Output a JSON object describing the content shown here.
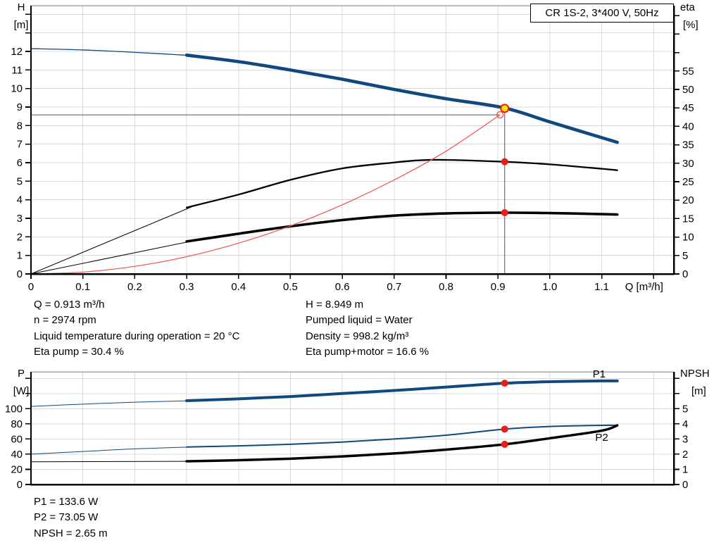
{
  "header": {
    "title": "CR 1S-2, 3*400 V, 50Hz"
  },
  "colors": {
    "curve_blue": "#10497e",
    "curve_black": "#000000",
    "curve_red": "#f05450",
    "dot_red": "#e81e17",
    "duty_yellow": "#ffe400",
    "label_blue": "#1b5a9e",
    "grid": "#d9d9d9",
    "frame_top": "#a6a6a6",
    "axis": "#000000",
    "ref_line": "#555555"
  },
  "annotations": {
    "left_column": [
      "Q = 0.913 m³/h",
      "n = 2974 rpm",
      "Liquid temperature during operation = 20 °C",
      "Eta pump = 30.4 %"
    ],
    "right_column": [
      "H = 8.949 m",
      "Pumped liquid = Water",
      "Density = 998.2 kg/m³",
      "Eta pump+motor = 16.6 %"
    ],
    "bottom_column": [
      "P1 = 133.6 W",
      "P2 = 73.05 W",
      "NPSH = 2.65 m"
    ]
  },
  "operating_point": {
    "Q": 0.913,
    "H": 8.949,
    "eta_pump": 30.4,
    "eta_pump_motor": 16.6,
    "P1": 133.6,
    "P2": 73.05,
    "NPSH": 2.65
  },
  "chart_data": [
    {
      "type": "line",
      "name": "head-efficiency-chart",
      "title": "CR 1S-2, 3*400 V, 50Hz",
      "x_axis": {
        "label": "Q [m³/h]",
        "lim": [
          0,
          1.239
        ],
        "ticks": [
          0,
          0.1,
          0.2,
          0.3,
          0.4,
          0.5,
          0.6,
          0.7,
          0.8,
          0.9,
          1.0,
          1.1,
          1.2
        ],
        "tick_labels": [
          "0",
          "0.1",
          "0.2",
          "0.3",
          "0.4",
          "0.5",
          "0.6",
          "0.7",
          "0.8",
          "0.9",
          "1.0",
          "1.1",
          ""
        ],
        "tick_marks": true
      },
      "left_axis": {
        "label": [
          "H",
          "[m]"
        ],
        "lim": [
          0,
          14.47
        ],
        "ticks": [
          0,
          1,
          2,
          3,
          4,
          5,
          6,
          7,
          8,
          9,
          10,
          11,
          12,
          13,
          14
        ],
        "tick_labels": [
          "0",
          "1",
          "2",
          "3",
          "4",
          "5",
          "6",
          "7",
          "8",
          "9",
          "10",
          "11",
          "12",
          "",
          ""
        ]
      },
      "right_axis": {
        "label": [
          "eta",
          "[%]"
        ],
        "label_indent": 4,
        "lim": [
          0,
          72.7
        ],
        "ticks": [
          0,
          5,
          10,
          15,
          20,
          25,
          30,
          35,
          40,
          45,
          50,
          55,
          60,
          65,
          70
        ],
        "tick_labels": [
          "0",
          "5",
          "10",
          "15",
          "20",
          "25",
          "30",
          "35",
          "40",
          "45",
          "50",
          "55",
          "",
          "",
          ""
        ]
      },
      "series": [
        {
          "name": "head-curve-inlet",
          "axis": "left",
          "color": "curve_blue",
          "width": 1.3,
          "points": [
            [
              0,
              12.15
            ],
            [
              0.1,
              12.08
            ],
            [
              0.2,
              11.95
            ],
            [
              0.31,
              11.78
            ]
          ]
        },
        {
          "name": "head-curve",
          "axis": "left",
          "color": "curve_blue",
          "width": 4.6,
          "points": [
            [
              0.3,
              11.8
            ],
            [
              0.4,
              11.45
            ],
            [
              0.5,
              11.0
            ],
            [
              0.6,
              10.5
            ],
            [
              0.7,
              9.95
            ],
            [
              0.8,
              9.45
            ],
            [
              0.913,
              8.949
            ],
            [
              1.0,
              8.2
            ],
            [
              1.1,
              7.35
            ],
            [
              1.13,
              7.1
            ]
          ]
        },
        {
          "name": "eta-pump-curve-inlet",
          "axis": "right",
          "color": "curve_black",
          "width": 1,
          "points": [
            [
              0,
              0
            ],
            [
              0.31,
              18.2
            ]
          ]
        },
        {
          "name": "eta-pump-curve",
          "axis": "right",
          "color": "curve_black",
          "width": 2.3,
          "points": [
            [
              0.3,
              18.0
            ],
            [
              0.4,
              21.5
            ],
            [
              0.5,
              25.5
            ],
            [
              0.6,
              28.6
            ],
            [
              0.7,
              30.2
            ],
            [
              0.75,
              30.8
            ],
            [
              0.8,
              30.9
            ],
            [
              0.913,
              30.4
            ],
            [
              1.0,
              29.7
            ],
            [
              1.1,
              28.5
            ],
            [
              1.13,
              28.1
            ]
          ]
        },
        {
          "name": "eta-pump-motor-curve-inlet",
          "axis": "right",
          "color": "curve_black",
          "width": 1,
          "points": [
            [
              0,
              0
            ],
            [
              0.31,
              8.9
            ]
          ]
        },
        {
          "name": "eta-pump-motor-curve",
          "axis": "right",
          "color": "curve_black",
          "width": 3.6,
          "points": [
            [
              0.3,
              8.8
            ],
            [
              0.4,
              10.9
            ],
            [
              0.5,
              12.9
            ],
            [
              0.6,
              14.6
            ],
            [
              0.7,
              15.8
            ],
            [
              0.8,
              16.4
            ],
            [
              0.913,
              16.6
            ],
            [
              1.0,
              16.5
            ],
            [
              1.1,
              16.2
            ],
            [
              1.13,
              16.1
            ]
          ]
        },
        {
          "name": "system-curve",
          "axis": "left",
          "color": "curve_red",
          "width": 1.2,
          "points": [
            [
              0,
              0
            ],
            [
              0.1,
              0.1
            ],
            [
              0.2,
              0.41
            ],
            [
              0.3,
              0.93
            ],
            [
              0.4,
              1.66
            ],
            [
              0.5,
              2.59
            ],
            [
              0.6,
              3.73
            ],
            [
              0.7,
              5.07
            ],
            [
              0.8,
              6.62
            ],
            [
              0.904,
              8.58
            ]
          ]
        }
      ],
      "ref_lines": [
        {
          "name": "duty-head-line",
          "type": "h",
          "axis": "left",
          "v": 8.58,
          "q0": 0,
          "q1": 0.904
        },
        {
          "name": "duty-flow-line",
          "type": "v",
          "axis": "left",
          "q": 0.913,
          "v0": 8.93,
          "v1": 0
        }
      ],
      "markers": [
        {
          "name": "system-intersection-marker",
          "q": 0.904,
          "axis": "left",
          "v": 8.58,
          "shape": "open-circle",
          "stroke": "curve_red",
          "r": 4.5
        },
        {
          "name": "duty-point-marker",
          "q": 0.913,
          "axis": "left",
          "v": 8.93,
          "shape": "dot",
          "fill": "duty_yellow",
          "stroke": "dot_red",
          "r": 5.5
        },
        {
          "name": "eta-pump-duty-dot",
          "q": 0.913,
          "axis": "right",
          "v": 30.4,
          "shape": "dot",
          "fill": "dot_red",
          "r": 5
        },
        {
          "name": "eta-pump-motor-duty-dot",
          "q": 0.913,
          "axis": "right",
          "v": 16.6,
          "shape": "dot",
          "fill": "dot_red",
          "r": 5
        }
      ],
      "labels": []
    },
    {
      "type": "line",
      "name": "power-npsh-chart",
      "title": "",
      "x_axis": {
        "label": "",
        "lim": [
          0,
          1.239
        ],
        "ticks": [
          0,
          0.1,
          0.2,
          0.3,
          0.4,
          0.5,
          0.6,
          0.7,
          0.8,
          0.9,
          1.0,
          1.1,
          1.2
        ],
        "tick_labels": [
          "",
          "",
          "",
          "",
          "",
          "",
          "",
          "",
          "",
          "",
          "",
          "",
          ""
        ],
        "tick_marks": false
      },
      "left_axis": {
        "label": [
          "P",
          "[W]"
        ],
        "lim": [
          0,
          148.6
        ],
        "ticks": [
          0,
          20,
          40,
          60,
          80,
          100,
          120,
          140
        ],
        "tick_labels": [
          "0",
          "20",
          "40",
          "60",
          "80",
          "100",
          "",
          ""
        ]
      },
      "right_axis": {
        "label": [
          "NPSH",
          "[m]"
        ],
        "label_indent": 16,
        "lim": [
          0,
          7.43
        ],
        "ticks": [
          0,
          1,
          2,
          3,
          4,
          5,
          6,
          7
        ],
        "tick_labels": [
          "0",
          "1",
          "2",
          "3",
          "4",
          "5",
          "",
          ""
        ]
      },
      "series": [
        {
          "name": "p1-curve-inlet",
          "axis": "left",
          "color": "curve_blue",
          "width": 1,
          "points": [
            [
              0,
              103
            ],
            [
              0.1,
              106
            ],
            [
              0.2,
              108.5
            ],
            [
              0.31,
              110.5
            ]
          ]
        },
        {
          "name": "p1-curve",
          "axis": "left",
          "color": "curve_blue",
          "width": 4,
          "points": [
            [
              0.3,
              110.5
            ],
            [
              0.4,
              113
            ],
            [
              0.5,
              116
            ],
            [
              0.6,
              120
            ],
            [
              0.7,
              124
            ],
            [
              0.8,
              128.5
            ],
            [
              0.913,
              133.6
            ],
            [
              1.0,
              135.6
            ],
            [
              1.1,
              136.6
            ],
            [
              1.13,
              136.6
            ]
          ]
        },
        {
          "name": "p2-curve-inlet",
          "axis": "left",
          "color": "curve_blue",
          "width": 1,
          "points": [
            [
              0,
              40
            ],
            [
              0.1,
              43.5
            ],
            [
              0.2,
              47
            ],
            [
              0.31,
              49.5
            ]
          ]
        },
        {
          "name": "p2-curve",
          "axis": "left",
          "color": "curve_blue",
          "width": 2,
          "points": [
            [
              0.3,
              49.5
            ],
            [
              0.4,
              51
            ],
            [
              0.5,
              53
            ],
            [
              0.6,
              56
            ],
            [
              0.7,
              60
            ],
            [
              0.8,
              65
            ],
            [
              0.913,
              73.05
            ],
            [
              1.0,
              76.5
            ],
            [
              1.1,
              78
            ],
            [
              1.13,
              78
            ]
          ]
        },
        {
          "name": "npsh-curve-inlet",
          "axis": "right",
          "color": "curve_black",
          "width": 1,
          "points": [
            [
              0,
              1.5
            ],
            [
              0.31,
              1.53
            ]
          ]
        },
        {
          "name": "npsh-curve",
          "axis": "right",
          "color": "curve_black",
          "width": 3.5,
          "points": [
            [
              0.3,
              1.53
            ],
            [
              0.4,
              1.6
            ],
            [
              0.5,
              1.7
            ],
            [
              0.6,
              1.85
            ],
            [
              0.7,
              2.05
            ],
            [
              0.8,
              2.3
            ],
            [
              0.913,
              2.65
            ],
            [
              1.0,
              3.05
            ],
            [
              1.1,
              3.55
            ],
            [
              1.13,
              3.9
            ]
          ]
        }
      ],
      "ref_lines": [],
      "markers": [
        {
          "name": "p1-duty-dot",
          "q": 0.913,
          "axis": "left",
          "v": 133.6,
          "shape": "dot",
          "fill": "dot_red",
          "r": 5
        },
        {
          "name": "p2-duty-dot",
          "q": 0.913,
          "axis": "left",
          "v": 73.05,
          "shape": "dot",
          "fill": "dot_red",
          "r": 5
        },
        {
          "name": "npsh-duty-dot",
          "q": 0.913,
          "axis": "right",
          "v": 2.65,
          "shape": "dot",
          "fill": "dot_red",
          "r": 5
        }
      ],
      "labels": [
        {
          "name": "p1-curve-label",
          "text": "P1",
          "q": 1.095,
          "axis": "left",
          "v": 145.8,
          "color": "label_blue"
        },
        {
          "name": "p2-curve-label",
          "text": "P2",
          "q": 1.1,
          "axis": "left",
          "v": 62.0,
          "color": "label_blue"
        }
      ]
    }
  ]
}
